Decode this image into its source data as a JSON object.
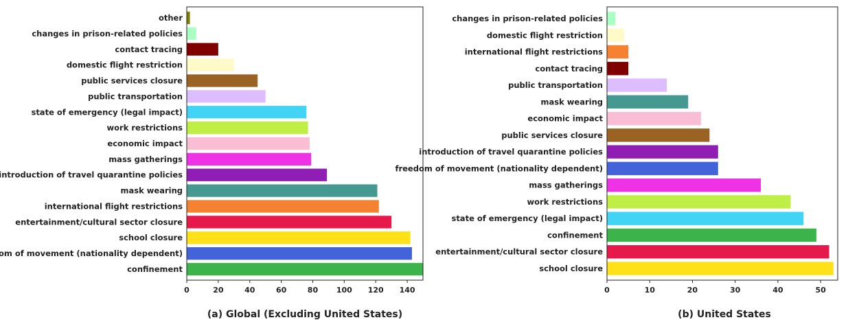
{
  "chart_data": [
    {
      "type": "bar",
      "orientation": "horizontal",
      "caption": "(a) Global (Excluding United States)",
      "xlim": [
        0,
        150
      ],
      "xticks": [
        0,
        20,
        40,
        60,
        80,
        100,
        120,
        140
      ],
      "grid": false,
      "categories": [
        "other",
        "changes in prison-related policies",
        "contact tracing",
        "domestic flight restriction",
        "public services closure",
        "public transportation",
        "state of emergency (legal impact)",
        "work restrictions",
        "economic impact",
        "mass gatherings",
        "introduction of travel quarantine policies",
        "mask wearing",
        "international flight restrictions",
        "entertainment/cultural sector closure",
        "school closure",
        "freedom of movement (nationality dependent)",
        "confinement"
      ],
      "values": [
        2,
        6,
        20,
        30,
        45,
        50,
        76,
        77,
        78,
        79,
        89,
        121,
        122,
        130,
        142,
        143,
        150
      ],
      "colors": [
        "#808000",
        "#aaffc3",
        "#800000",
        "#fffac8",
        "#9a6324",
        "#dcbeff",
        "#42d4f4",
        "#bfef45",
        "#fabed4",
        "#f032e6",
        "#911eb4",
        "#469990",
        "#f58231",
        "#e6194b",
        "#ffe119",
        "#4363d8",
        "#3cb44b"
      ]
    },
    {
      "type": "bar",
      "orientation": "horizontal",
      "caption": "(b) United States",
      "xlim": [
        0,
        54
      ],
      "xticks": [
        0,
        10,
        20,
        30,
        40,
        50
      ],
      "grid": false,
      "categories": [
        "changes in prison-related policies",
        "domestic flight restriction",
        "international flight restrictions",
        "contact tracing",
        "public transportation",
        "mask wearing",
        "economic impact",
        "public services closure",
        "introduction of travel quarantine policies",
        "freedom of movement (nationality dependent)",
        "mass gatherings",
        "work restrictions",
        "state of emergency (legal impact)",
        "confinement",
        "entertainment/cultural sector closure",
        "school closure"
      ],
      "values": [
        2,
        4,
        5,
        5,
        14,
        19,
        22,
        24,
        26,
        26,
        36,
        43,
        46,
        49,
        52,
        53
      ],
      "colors": [
        "#aaffc3",
        "#fffac8",
        "#f58231",
        "#800000",
        "#dcbeff",
        "#469990",
        "#fabed4",
        "#9a6324",
        "#911eb4",
        "#4363d8",
        "#f032e6",
        "#bfef45",
        "#42d4f4",
        "#3cb44b",
        "#e6194b",
        "#ffe119"
      ]
    }
  ]
}
